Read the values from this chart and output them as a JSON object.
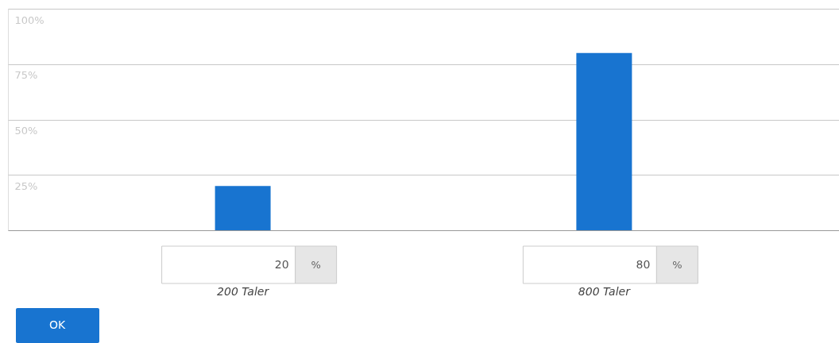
{
  "chart_data": {
    "type": "bar",
    "categories": [
      "200 Taler",
      "800 Taler"
    ],
    "values": [
      20,
      80
    ],
    "color": "#1874d0",
    "ylim": [
      0,
      100
    ],
    "yticks": [
      {
        "value": 25,
        "label": "25%"
      },
      {
        "value": 50,
        "label": "50%"
      },
      {
        "value": 75,
        "label": "75%"
      },
      {
        "value": 100,
        "label": "100%"
      }
    ],
    "grid": "y",
    "data_labels": true,
    "annotations": [
      "%",
      "%",
      "OK"
    ]
  }
}
